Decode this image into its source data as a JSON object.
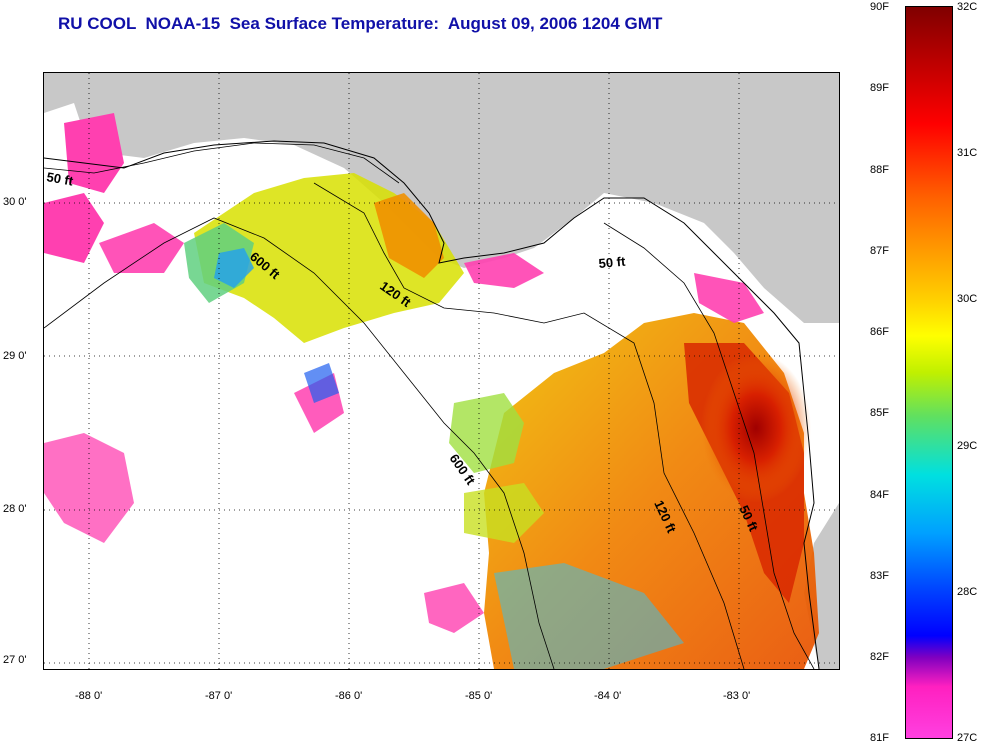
{
  "title": "RU COOL  NOAA-15  Sea Surface Temperature:  August 09, 2006 1204 GMT",
  "lat_ticks": [
    "30 0'",
    "29 0'",
    "28 0'",
    "27 0'"
  ],
  "lon_ticks": [
    "-88 0'",
    "-87 0'",
    "-86 0'",
    "-85 0'",
    "-84 0'",
    "-83 0'"
  ],
  "contours": {
    "c50_west": "50 ft",
    "c600_west": "600 ft",
    "c120_mid": "120 ft",
    "c50_east": "50 ft",
    "c600_mid": "600 ft",
    "c120_east": "120 ft",
    "c50_south": "50 ft"
  },
  "colorbar": {
    "fahrenheit": [
      "90F",
      "89F",
      "88F",
      "87F",
      "86F",
      "85F",
      "84F",
      "83F",
      "82F",
      "81F"
    ],
    "celsius": [
      "32C",
      "31C",
      "30C",
      "29C",
      "28C",
      "27C"
    ]
  },
  "colors": {
    "land": "#c8c8c8",
    "cloud": "#ffffff",
    "warm": "#e04000",
    "hot": "#a00000",
    "cool": "#20e0e0",
    "cold": "#ff40b0"
  }
}
